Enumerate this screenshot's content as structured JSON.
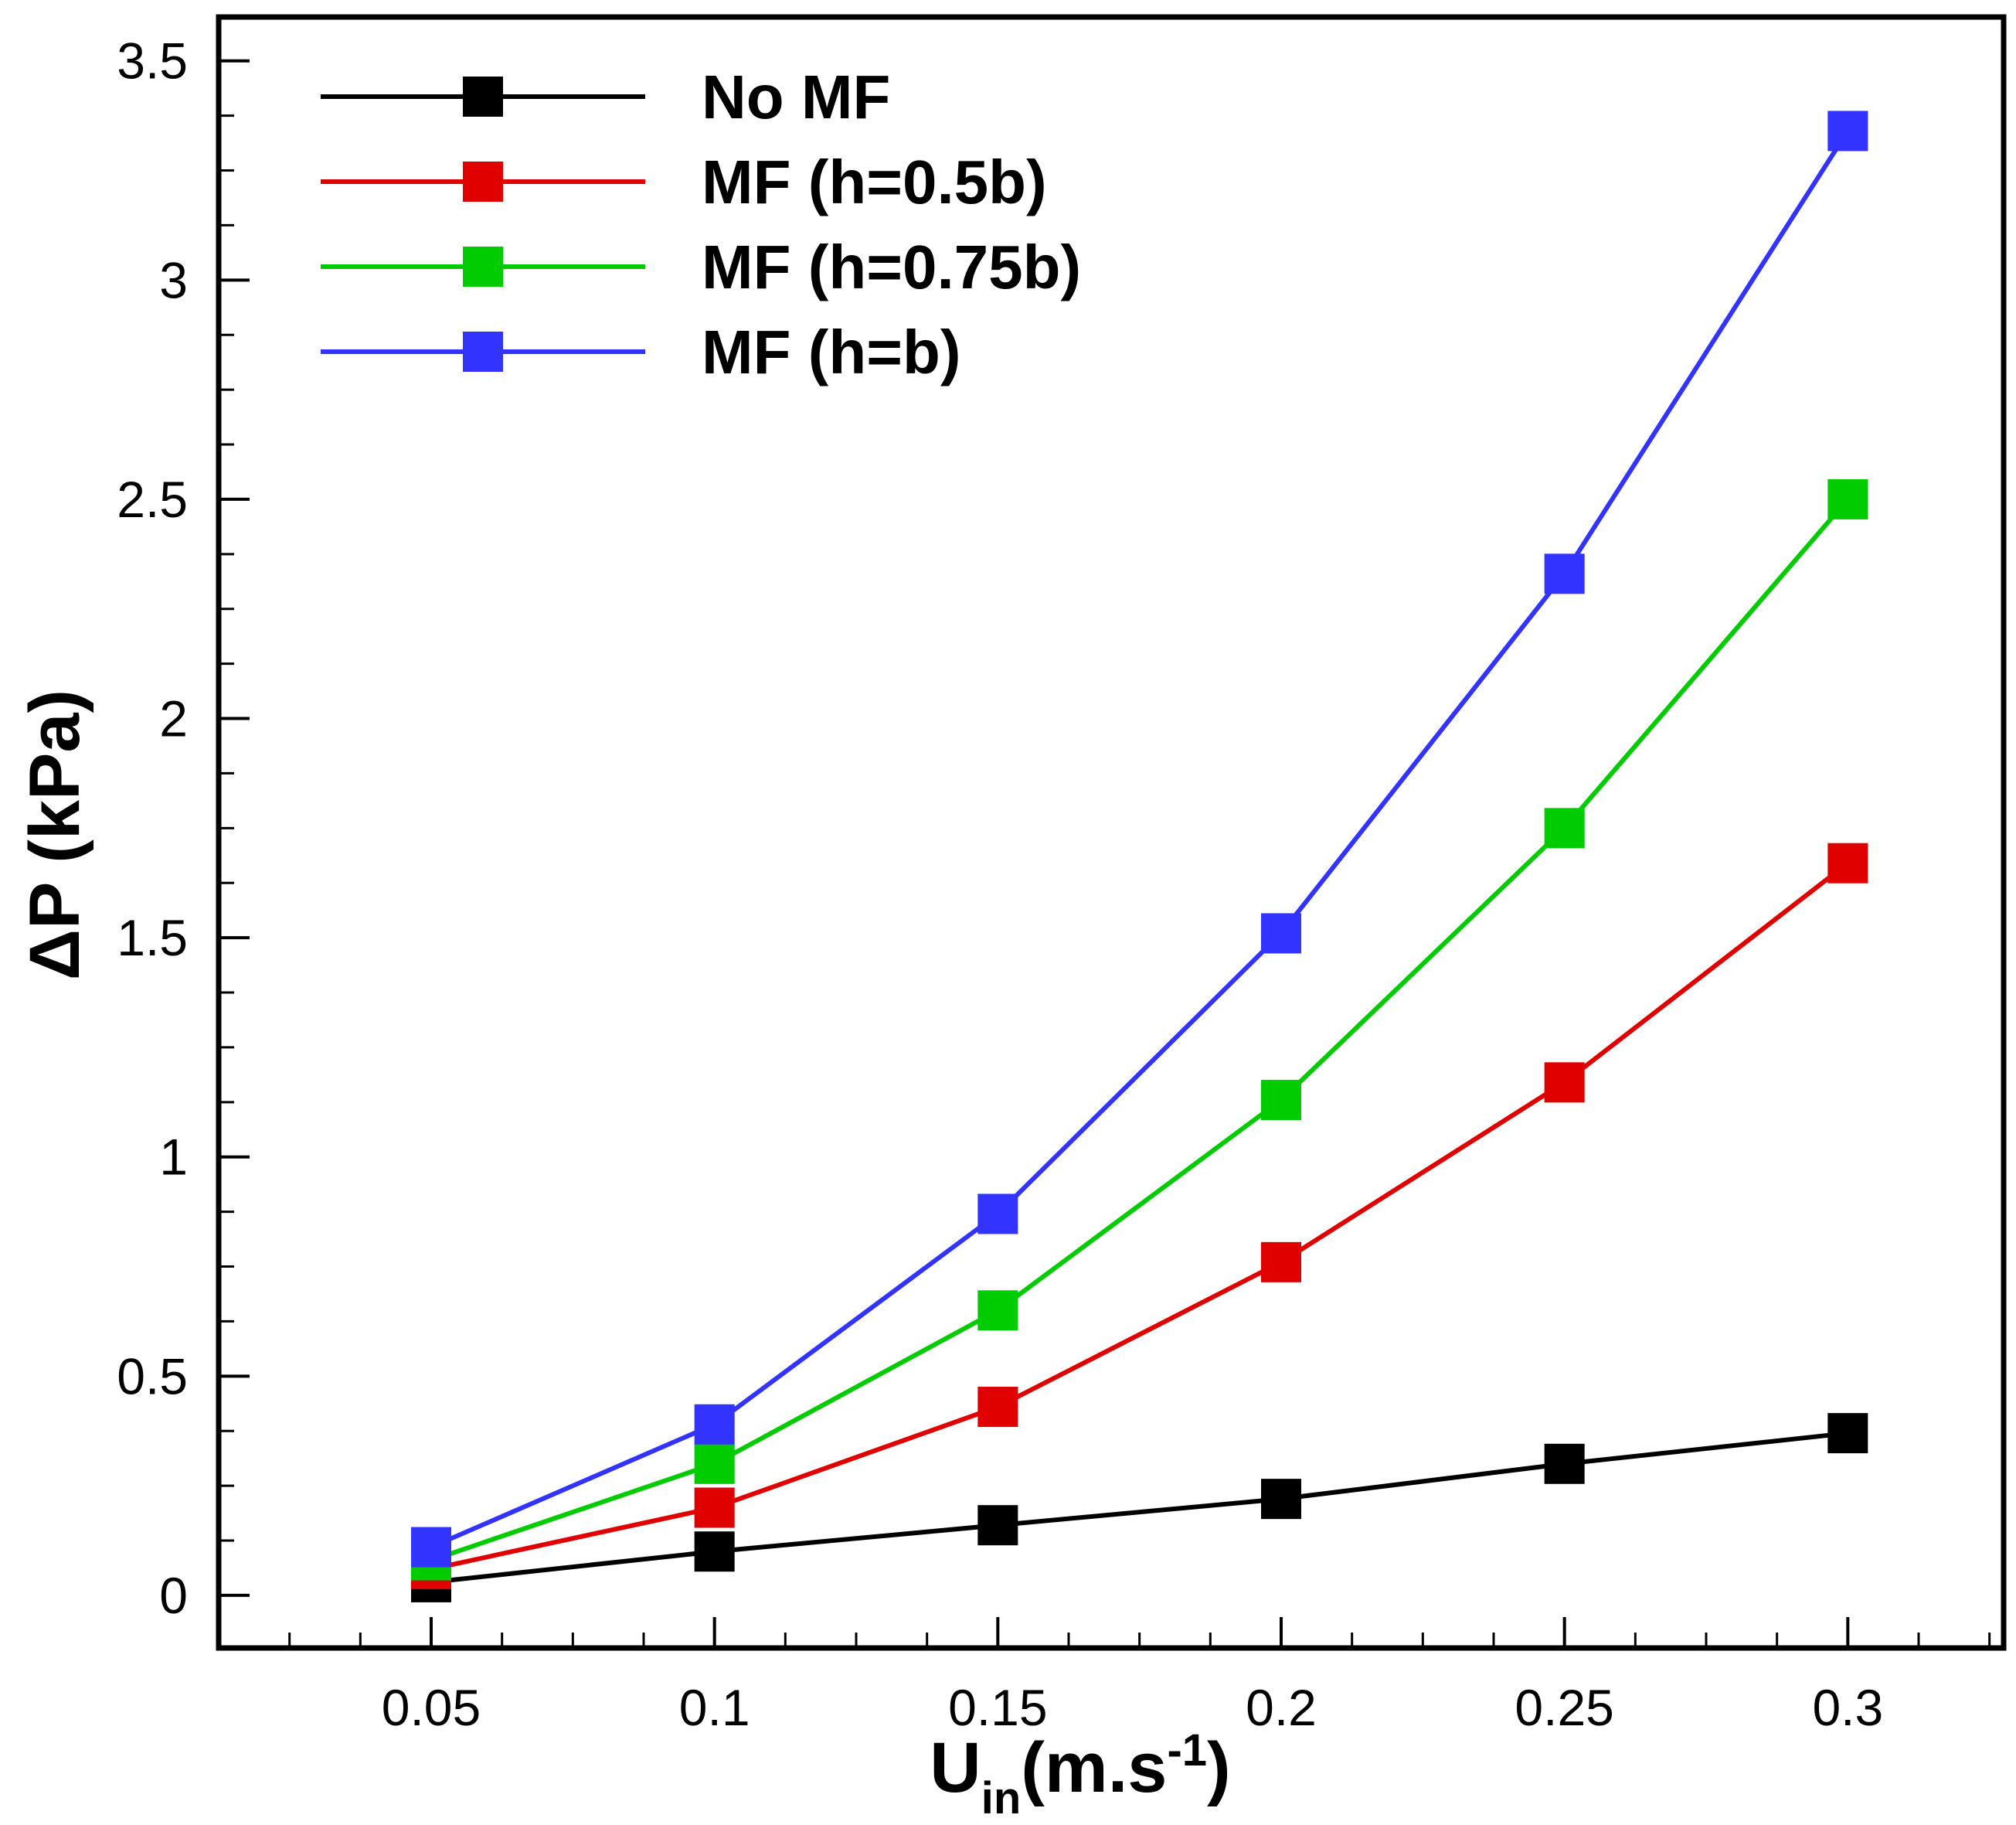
{
  "chart_data": {
    "type": "line",
    "title": "",
    "xlabel": {
      "main": "U",
      "sub": "in",
      "unit_open": "(m.s",
      "sup": "-1",
      "unit_close": ")"
    },
    "ylabel": "ΔP (kPa)",
    "xlim": [
      0.0125,
      0.3275
    ],
    "ylim": [
      -0.12,
      3.6
    ],
    "x_ticks": [
      0.05,
      0.1,
      0.15,
      0.2,
      0.25,
      0.3
    ],
    "x_tick_labels": [
      "0.05",
      "0.1",
      "0.15",
      "0.2",
      "0.25",
      "0.3"
    ],
    "x_minor_step": 0.0125,
    "y_ticks": [
      0,
      0.5,
      1,
      1.5,
      2,
      2.5,
      3,
      3.5
    ],
    "y_tick_labels": [
      "0",
      "0.5",
      "1",
      "1.5",
      "2",
      "2.5",
      "3",
      "3.5"
    ],
    "y_minor_step": 0.125,
    "x": [
      0.05,
      0.1,
      0.15,
      0.2,
      0.25,
      0.3
    ],
    "legend_position": "top-left",
    "series": [
      {
        "name": "No MF",
        "color": "#000000",
        "values": [
          0.03,
          0.1,
          0.16,
          0.22,
          0.3,
          0.37
        ]
      },
      {
        "name": "MF (h=0.5b)",
        "color": "#e00000",
        "values": [
          0.06,
          0.2,
          0.43,
          0.76,
          1.17,
          1.67
        ]
      },
      {
        "name": "MF (h=0.75b)",
        "color": "#00cc00",
        "values": [
          0.08,
          0.3,
          0.65,
          1.13,
          1.75,
          2.5
        ]
      },
      {
        "name": "MF (h=b)",
        "color": "#3333ff",
        "values": [
          0.11,
          0.39,
          0.87,
          1.51,
          2.33,
          3.34
        ]
      }
    ]
  }
}
